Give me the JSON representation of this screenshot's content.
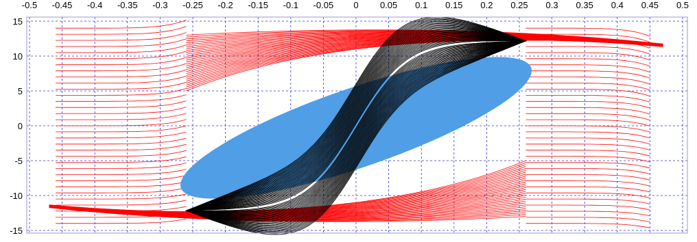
{
  "chart_data": {
    "type": "line",
    "title": "",
    "xlabel": "",
    "ylabel": "",
    "xlim": [
      -0.5,
      0.5
    ],
    "ylim": [
      -16,
      16
    ],
    "x_ticks": [
      -0.5,
      -0.45,
      -0.4,
      -0.35,
      -0.3,
      -0.25,
      -0.2,
      -0.15,
      -0.1,
      -0.05,
      0,
      0.05,
      0.1,
      0.15,
      0.2,
      0.25,
      0.3,
      0.35,
      0.4,
      0.45,
      0.5
    ],
    "x_tick_labels": [
      "-0.5",
      "-0.45",
      "-0.4",
      "-0.35",
      "-0.3",
      "-0.25",
      "-0.2",
      "-0.15",
      "-0.1",
      "-0.05",
      "0",
      "0.05",
      "0.1",
      "0.15",
      "0.2",
      "0.25",
      "0.3",
      "0.35",
      "0.4",
      "0.45",
      "0.5"
    ],
    "y_ticks": [
      -15,
      -10,
      -5,
      0,
      5,
      10,
      15
    ],
    "y_tick_labels": [
      "-15",
      "-10",
      "-5",
      "0",
      "5",
      "10",
      "15"
    ],
    "x_axis_position": "top",
    "grid": true,
    "grid_style": "dashed",
    "colors": {
      "grid": "#3333cc",
      "red_family": "#ff0000",
      "black_family": "#000000",
      "ellipse_fill": "#4f9ee6"
    },
    "families": [
      {
        "color": "#ff0000",
        "description_visible": "left-side red curves",
        "x_start": -0.46,
        "x_end": -0.26,
        "y_start_range": [
          -14,
          14
        ],
        "count": 33
      },
      {
        "color": "#ff0000",
        "description_visible": "right-side red curves",
        "x_start": 0.26,
        "x_end": 0.45,
        "y_start_range": [
          -14,
          14
        ],
        "count": 33
      },
      {
        "color": "#ff0000",
        "description_visible": "upper red curves",
        "x_start": -0.26,
        "x_end": 0.47,
        "y_start_range": [
          5,
          13
        ],
        "count": 30
      },
      {
        "color": "#ff0000",
        "description_visible": "lower red curves",
        "x_start": -0.47,
        "x_end": 0.26,
        "y_start_range": [
          -13,
          -5
        ],
        "count": 30
      },
      {
        "color": "#000000",
        "description_visible": "black hysteresis loops",
        "x_range": [
          -0.26,
          0.26
        ],
        "y_range": [
          -12.5,
          12.5
        ],
        "count": 28
      }
    ],
    "ellipse": {
      "center": [
        0,
        -0.3
      ],
      "semi_x": 0.26,
      "semi_y": 8.8,
      "color": "#4f9ee6"
    }
  }
}
